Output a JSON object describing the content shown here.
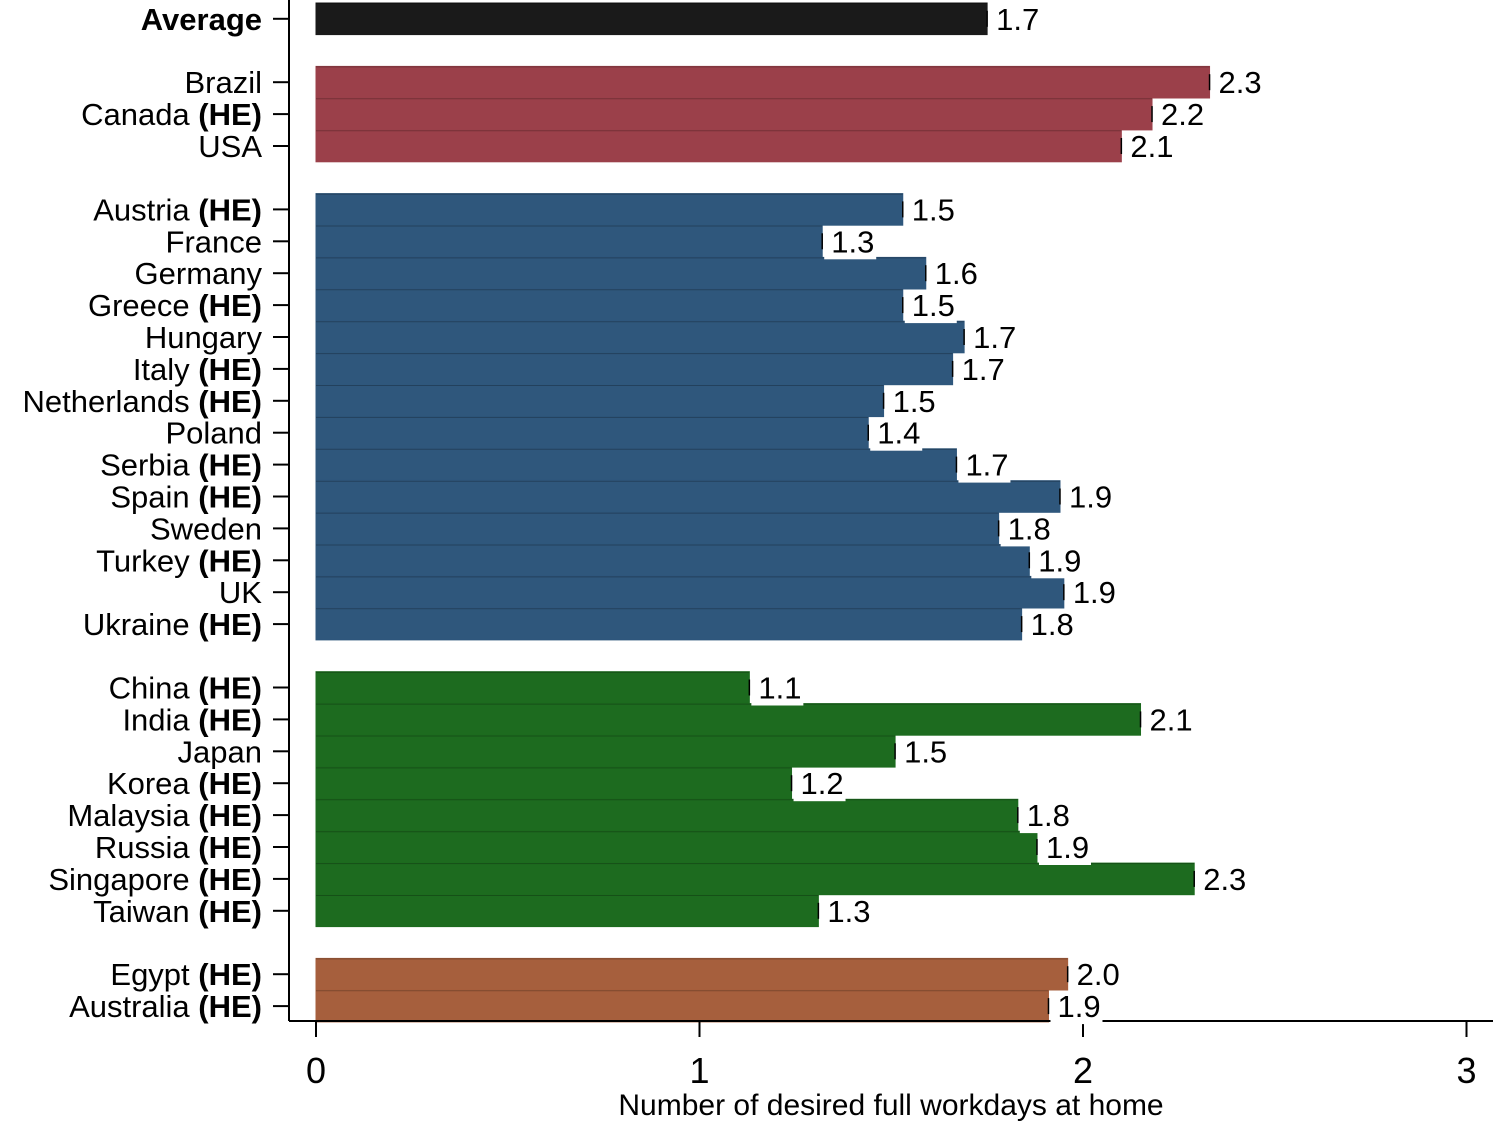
{
  "chart_data": {
    "type": "bar",
    "orientation": "horizontal",
    "xlabel": "Number of desired full workdays at home",
    "xlim": [
      0,
      3
    ],
    "xticks": [
      "0",
      "1",
      "2",
      "3"
    ],
    "grid": false,
    "marker_text": "(HE)",
    "groups": [
      {
        "color": "#1a1a1a",
        "bars": [
          {
            "label": "Average",
            "bold": true,
            "he": false,
            "value": 1.75,
            "value_label": "1.7"
          }
        ]
      },
      {
        "color": "#9b404a",
        "bars": [
          {
            "label": "Brazil",
            "he": false,
            "value": 2.33,
            "value_label": "2.3"
          },
          {
            "label": "Canada",
            "he": true,
            "value": 2.18,
            "value_label": "2.2"
          },
          {
            "label": "USA",
            "he": false,
            "value": 2.1,
            "value_label": "2.1"
          }
        ]
      },
      {
        "color": "#2f577c",
        "bars": [
          {
            "label": "Austria",
            "he": true,
            "value": 1.53,
            "value_label": "1.5"
          },
          {
            "label": "France",
            "he": false,
            "value": 1.32,
            "value_label": "1.3"
          },
          {
            "label": "Germany",
            "he": false,
            "value": 1.59,
            "value_label": "1.6"
          },
          {
            "label": "Greece",
            "he": true,
            "value": 1.53,
            "value_label": "1.5"
          },
          {
            "label": "Hungary",
            "he": false,
            "value": 1.69,
            "value_label": "1.7"
          },
          {
            "label": "Italy",
            "he": true,
            "value": 1.66,
            "value_label": "1.7"
          },
          {
            "label": "Netherlands",
            "he": true,
            "value": 1.48,
            "value_label": "1.5"
          },
          {
            "label": "Poland",
            "he": false,
            "value": 1.44,
            "value_label": "1.4"
          },
          {
            "label": "Serbia",
            "he": true,
            "value": 1.67,
            "value_label": "1.7"
          },
          {
            "label": "Spain",
            "he": true,
            "value": 1.94,
            "value_label": "1.9"
          },
          {
            "label": "Sweden",
            "he": false,
            "value": 1.78,
            "value_label": "1.8"
          },
          {
            "label": "Turkey",
            "he": true,
            "value": 1.86,
            "value_label": "1.9"
          },
          {
            "label": "UK",
            "he": false,
            "value": 1.95,
            "value_label": "1.9"
          },
          {
            "label": "Ukraine",
            "he": true,
            "value": 1.84,
            "value_label": "1.8"
          }
        ]
      },
      {
        "color": "#1d6b1f",
        "bars": [
          {
            "label": "China",
            "he": true,
            "value": 1.13,
            "value_label": "1.1"
          },
          {
            "label": "India",
            "he": true,
            "value": 2.15,
            "value_label": "2.1"
          },
          {
            "label": "Japan",
            "he": false,
            "value": 1.51,
            "value_label": "1.5"
          },
          {
            "label": "Korea",
            "he": true,
            "value": 1.24,
            "value_label": "1.2"
          },
          {
            "label": "Malaysia",
            "he": true,
            "value": 1.83,
            "value_label": "1.8"
          },
          {
            "label": "Russia",
            "he": true,
            "value": 1.88,
            "value_label": "1.9"
          },
          {
            "label": "Singapore",
            "he": true,
            "value": 2.29,
            "value_label": "2.3"
          },
          {
            "label": "Taiwan",
            "he": true,
            "value": 1.31,
            "value_label": "1.3"
          }
        ]
      },
      {
        "color": "#a65f3d",
        "bars": [
          {
            "label": "Egypt",
            "he": true,
            "value": 1.96,
            "value_label": "2.0"
          },
          {
            "label": "Australia",
            "he": true,
            "value": 1.91,
            "value_label": "1.9"
          }
        ]
      }
    ]
  }
}
